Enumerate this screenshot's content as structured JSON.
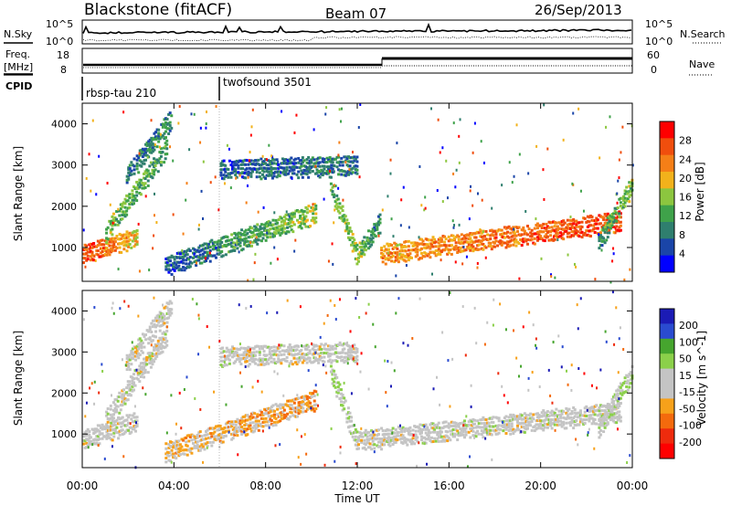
{
  "header": {
    "station": "Blackstone (fitACF)",
    "beam": "Beam 07",
    "date": "26/Sep/2013"
  },
  "top_panels": {
    "nsky_label": "N.Sky",
    "nsearch_label": "N.Search",
    "noise_ticks": [
      "10^5",
      "10^0"
    ],
    "freq_label": "Freq.",
    "freq_unit": "[MHz]",
    "freq_ticks": [
      "18",
      "8"
    ],
    "nave_label": "Nave",
    "nave_ticks": [
      "60",
      "0"
    ],
    "cpid_label": "CPID",
    "cpid_segments": [
      {
        "name": "rbsp-tau 210",
        "start_hr": 0.0
      },
      {
        "name": "twofsound 3501",
        "start_hr": 6.0
      }
    ]
  },
  "xaxis": {
    "label": "Time UT",
    "ticks": [
      "00:00",
      "04:00",
      "08:00",
      "12:00",
      "16:00",
      "20:00",
      "00:00"
    ],
    "range_hr": [
      0,
      24
    ]
  },
  "colors": {
    "power": [
      "#0000ff",
      "#1a45a8",
      "#2f7f6e",
      "#3fa24a",
      "#8cc63f",
      "#f2b21b",
      "#f57f17",
      "#f04e0d",
      "#ff0000"
    ],
    "velocity": [
      "#1b1bb5",
      "#2a4bd0",
      "#46a52e",
      "#8bd04a",
      "#c4c4c4",
      "#c4c4c4",
      "#f7a11a",
      "#f46a0d",
      "#ee2b0d",
      "#ff0000"
    ]
  },
  "chart_data": [
    {
      "type": "heatmap",
      "title": "Power",
      "ylabel": "Slant Range [km]",
      "xlabel": "",
      "ylim": [
        180,
        4500
      ],
      "yticks": [
        1000,
        2000,
        3000,
        4000
      ],
      "colorbar": {
        "label": "Power [dB]",
        "ticks": [
          "28",
          "24",
          "20",
          "16",
          "12",
          "8",
          "4"
        ],
        "range": [
          0,
          30
        ]
      },
      "bands": [
        {
          "t0": 0.0,
          "t1": 2.4,
          "r0": 900,
          "r1": 1300,
          "v0": 26,
          "v1": 18
        },
        {
          "t0": 1.0,
          "t1": 3.7,
          "r0": 1400,
          "r1": 3500,
          "v0": 14,
          "v1": 10
        },
        {
          "t0": 1.9,
          "t1": 3.9,
          "r0": 2800,
          "r1": 4200,
          "v0": 8,
          "v1": 10
        },
        {
          "t0": 3.6,
          "t1": 10.2,
          "r0": 600,
          "r1": 1900,
          "v0": 6,
          "v1": 15
        },
        {
          "t0": 10.8,
          "t1": 12.0,
          "r0": 2600,
          "r1": 800,
          "v0": 12,
          "v1": 16
        },
        {
          "t0": 12.0,
          "t1": 13.0,
          "r0": 900,
          "r1": 1700,
          "v0": 14,
          "v1": 8
        },
        {
          "t0": 13.0,
          "t1": 23.5,
          "r0": 900,
          "r1": 1700,
          "v0": 20,
          "v1": 26
        },
        {
          "t0": 22.5,
          "t1": 24.0,
          "r0": 1200,
          "r1": 2600,
          "v0": 10,
          "v1": 14
        },
        {
          "t0": 6.0,
          "t1": 12.0,
          "r0": 2950,
          "r1": 3050,
          "v0": 6,
          "v1": 8
        }
      ]
    },
    {
      "type": "heatmap",
      "title": "Velocity",
      "ylabel": "Slant Range [km]",
      "xlabel": "Time UT",
      "ylim": [
        180,
        4500
      ],
      "yticks": [
        1000,
        2000,
        3000,
        4000
      ],
      "colorbar": {
        "label": "Velocity [m s^-1]",
        "ticks": [
          "200",
          "100",
          "50",
          "15",
          "-15",
          "-50",
          "-100",
          "-200"
        ],
        "range": [
          -250,
          250
        ]
      },
      "bands": [
        {
          "t0": 0.0,
          "t1": 2.4,
          "r0": 900,
          "r1": 1400,
          "v0": 0,
          "v1": 0
        },
        {
          "t0": 1.0,
          "t1": 3.7,
          "r0": 1400,
          "r1": 3500,
          "v0": 0,
          "v1": 0
        },
        {
          "t0": 1.9,
          "t1": 3.9,
          "r0": 2800,
          "r1": 4200,
          "v0": 0,
          "v1": 0
        },
        {
          "t0": 3.6,
          "t1": 10.2,
          "r0": 600,
          "r1": 1900,
          "v0": -40,
          "v1": -70
        },
        {
          "t0": 10.8,
          "t1": 12.0,
          "r0": 2600,
          "r1": 800,
          "v0": 40,
          "v1": 20
        },
        {
          "t0": 12.0,
          "t1": 23.5,
          "r0": 900,
          "r1": 1600,
          "v0": 0,
          "v1": 0
        },
        {
          "t0": 22.5,
          "t1": 24.0,
          "r0": 1200,
          "r1": 2600,
          "v0": 0,
          "v1": 30
        },
        {
          "t0": 6.0,
          "t1": 12.0,
          "r0": 2950,
          "r1": 3050,
          "v0": 0,
          "v1": 0
        }
      ]
    }
  ]
}
